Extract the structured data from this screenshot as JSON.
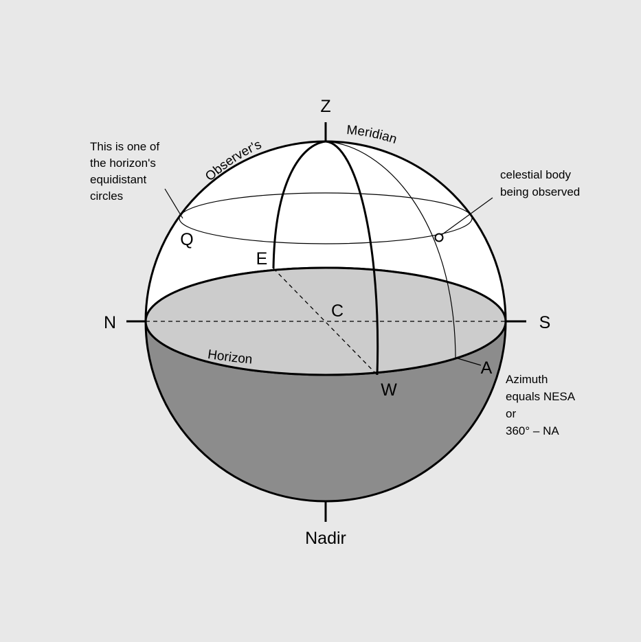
{
  "colors": {
    "background": "#e8e8e8",
    "upper_hemisphere": "#ffffff",
    "horizon_plane": "#cccccc",
    "lower_hemisphere": "#8c8c8c",
    "stroke": "#000000"
  },
  "labels": {
    "zenith": "Z",
    "nadir": "Nadir",
    "north": "N",
    "south": "S",
    "east": "E",
    "west": "W",
    "center": "C",
    "azimuth_point": "A",
    "q_point": "Q",
    "meridian_left": "Observer's",
    "meridian_right": "Meridian",
    "horizon": "Horizon"
  },
  "annotations": {
    "equidistant_circle": [
      "This is one of",
      "the horizon's",
      "equidistant",
      "circles"
    ],
    "celestial_body": [
      "celestial body",
      "being observed"
    ],
    "azimuth": [
      "Azimuth",
      "equals NESA",
      "or",
      "360° – NA"
    ]
  }
}
